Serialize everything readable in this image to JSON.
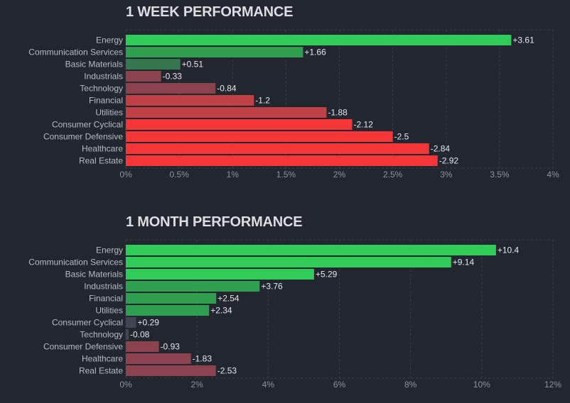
{
  "colors": {
    "background": "#22262f",
    "grid": "#3a3f4b",
    "strong_green": "#30cc5a",
    "mid_green": "#2f9e4f",
    "dim_green": "#35764e",
    "neutral": "#414554",
    "dim_red": "#8b444e",
    "mid_red": "#bf4045",
    "strong_red": "#f63538"
  },
  "chart_data": [
    {
      "type": "bar",
      "orientation": "horizontal",
      "title": "1 WEEK PERFORMANCE",
      "categories": [
        "Energy",
        "Communication Services",
        "Basic Materials",
        "Industrials",
        "Technology",
        "Financial",
        "Utilities",
        "Consumer Cyclical",
        "Consumer Defensive",
        "Healthcare",
        "Real Estate"
      ],
      "values": [
        3.61,
        1.66,
        0.51,
        -0.33,
        -0.84,
        -1.2,
        -1.88,
        -2.12,
        -2.5,
        -2.84,
        -2.92
      ],
      "value_labels": [
        "+3.61",
        "+1.66",
        "+0.51",
        "-0.33",
        "-0.84",
        "-1.2",
        "-1.88",
        "-2.12",
        "-2.5",
        "-2.84",
        "-2.92"
      ],
      "bar_colors": [
        "#30cc5a",
        "#2f9e4f",
        "#35764e",
        "#8b444e",
        "#8b444e",
        "#bf4045",
        "#bf4045",
        "#f63538",
        "#f63538",
        "#f63538",
        "#f63538"
      ],
      "x_ticks": [
        "0%",
        "0.5%",
        "1%",
        "1.5%",
        "2%",
        "2.5%",
        "3%",
        "3.5%",
        "4%"
      ],
      "xlim": [
        0,
        4
      ],
      "bar_magnitude": "absolute",
      "grid": true
    },
    {
      "type": "bar",
      "orientation": "horizontal",
      "title": "1 MONTH PERFORMANCE",
      "categories": [
        "Energy",
        "Communication Services",
        "Basic Materials",
        "Industrials",
        "Financial",
        "Utilities",
        "Consumer Cyclical",
        "Technology",
        "Consumer Defensive",
        "Healthcare",
        "Real Estate"
      ],
      "values": [
        10.4,
        9.14,
        5.29,
        3.76,
        2.54,
        2.34,
        0.29,
        -0.08,
        -0.93,
        -1.83,
        -2.53
      ],
      "value_labels": [
        "+10.4",
        "+9.14",
        "+5.29",
        "+3.76",
        "+2.54",
        "+2.34",
        "+0.29",
        "-0.08",
        "-0.93",
        "-1.83",
        "-2.53"
      ],
      "bar_colors": [
        "#30cc5a",
        "#30cc5a",
        "#30cc5a",
        "#2f9e4f",
        "#2f9e4f",
        "#2f9e4f",
        "#414554",
        "#414554",
        "#8b444e",
        "#8b444e",
        "#8b444e"
      ],
      "x_ticks": [
        "0%",
        "2%",
        "4%",
        "6%",
        "8%",
        "10%",
        "12%"
      ],
      "xlim": [
        0,
        12
      ],
      "bar_magnitude": "absolute",
      "grid": true
    }
  ]
}
